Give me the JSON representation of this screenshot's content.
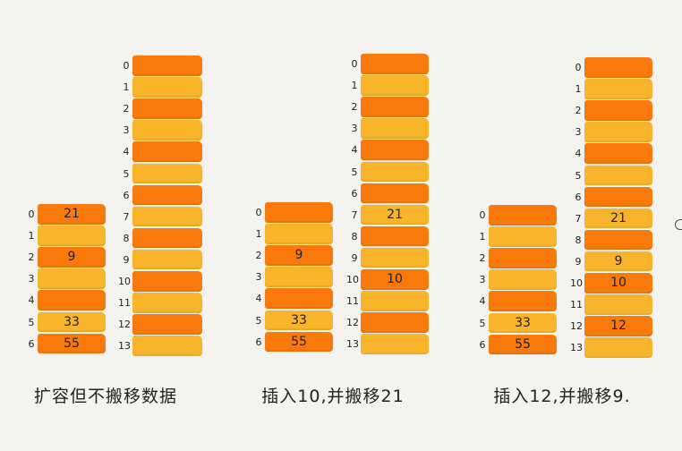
{
  "colors": {
    "background": "#f4f3ef",
    "dark_cell": "#f97a0a",
    "light_cell": "#f8b52c",
    "text": "#222222"
  },
  "groups": [
    {
      "caption": "扩容但不搬移数据",
      "old_array": {
        "indices": [
          "0",
          "1",
          "2",
          "3",
          "4",
          "5",
          "6"
        ],
        "values": [
          "21",
          "",
          "9",
          "",
          "",
          "33",
          "55"
        ]
      },
      "new_array": {
        "indices": [
          "0",
          "1",
          "2",
          "3",
          "4",
          "5",
          "6",
          "7",
          "8",
          "9",
          "10",
          "11",
          "12",
          "13"
        ],
        "values": [
          "",
          "",
          "",
          "",
          "",
          "",
          "",
          "",
          "",
          "",
          "",
          "",
          "",
          ""
        ]
      }
    },
    {
      "caption": "插入10,并搬移21",
      "old_array": {
        "indices": [
          "0",
          "1",
          "2",
          "3",
          "4",
          "5",
          "6"
        ],
        "values": [
          "",
          "",
          "9",
          "",
          "",
          "33",
          "55"
        ]
      },
      "new_array": {
        "indices": [
          "0",
          "1",
          "2",
          "3",
          "4",
          "5",
          "6",
          "7",
          "8",
          "9",
          "10",
          "11",
          "12",
          "13"
        ],
        "values": [
          "",
          "",
          "",
          "",
          "",
          "",
          "",
          "21",
          "",
          "",
          "10",
          "",
          "",
          ""
        ]
      }
    },
    {
      "caption": "插入12,并搬移9.",
      "old_array": {
        "indices": [
          "0",
          "1",
          "2",
          "3",
          "4",
          "5",
          "6"
        ],
        "values": [
          "",
          "",
          "",
          "",
          "",
          "33",
          "55"
        ]
      },
      "new_array": {
        "indices": [
          "0",
          "1",
          "2",
          "3",
          "4",
          "5",
          "6",
          "7",
          "8",
          "9",
          "10",
          "11",
          "12",
          "13"
        ],
        "values": [
          "",
          "",
          "",
          "",
          "",
          "",
          "",
          "21",
          "",
          "9",
          "10",
          "",
          "12",
          ""
        ]
      }
    }
  ]
}
